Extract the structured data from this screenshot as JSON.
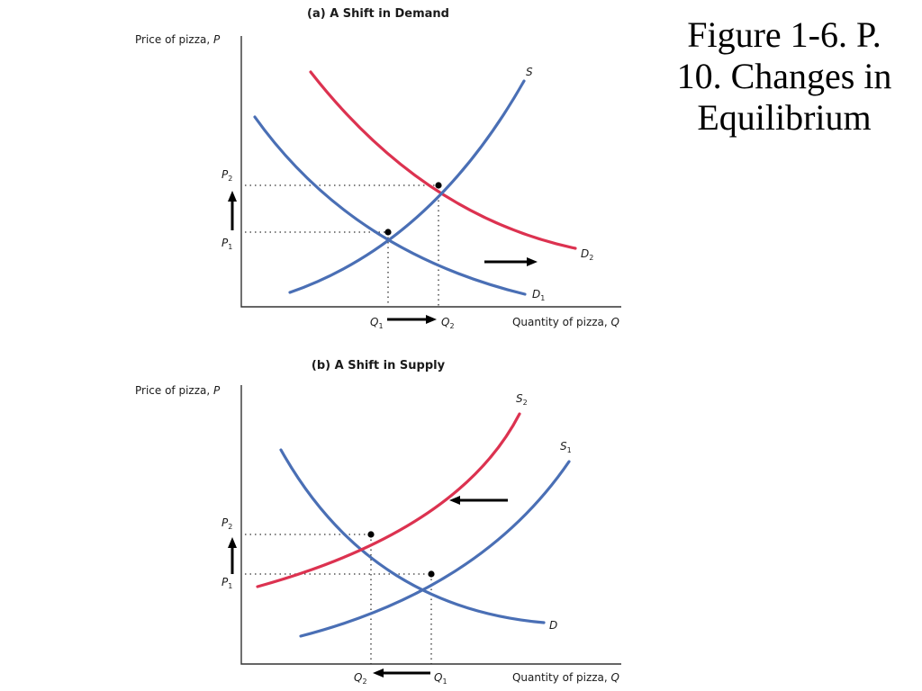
{
  "slide": {
    "title_lines": [
      "Figure 1-6. P.",
      "10. Changes in",
      "Equilibrium"
    ]
  },
  "panels": [
    {
      "title": "(a) A Shift in Demand",
      "y_axis_label": "Price of pizza,",
      "y_axis_var": "P",
      "x_axis_label": "Quantity of pizza,",
      "x_axis_var": "Q",
      "curves": {
        "supply": {
          "name": "S",
          "sub": "",
          "color": "#4a6fb5"
        },
        "demand_1": {
          "name": "D",
          "sub": "1",
          "color": "#4a6fb5"
        },
        "demand_2": {
          "name": "D",
          "sub": "2",
          "color": "#dc3250"
        }
      },
      "price_ticks": {
        "p1": {
          "name": "P",
          "sub": "1"
        },
        "p2": {
          "name": "P",
          "sub": "2"
        }
      },
      "quantity_ticks": {
        "q1": {
          "name": "Q",
          "sub": "1"
        },
        "q2": {
          "name": "Q",
          "sub": "2"
        }
      }
    },
    {
      "title": "(b) A Shift in Supply",
      "y_axis_label": "Price of pizza,",
      "y_axis_var": "P",
      "x_axis_label": "Quantity of pizza,",
      "x_axis_var": "Q",
      "curves": {
        "supply_1": {
          "name": "S",
          "sub": "1",
          "color": "#4a6fb5"
        },
        "supply_2": {
          "name": "S",
          "sub": "2",
          "color": "#dc3250"
        },
        "demand": {
          "name": "D",
          "sub": "",
          "color": "#4a6fb5"
        }
      },
      "price_ticks": {
        "p1": {
          "name": "P",
          "sub": "1"
        },
        "p2": {
          "name": "P",
          "sub": "2"
        }
      },
      "quantity_ticks": {
        "q1": {
          "name": "Q",
          "sub": "1"
        },
        "q2": {
          "name": "Q",
          "sub": "2"
        }
      }
    }
  ]
}
